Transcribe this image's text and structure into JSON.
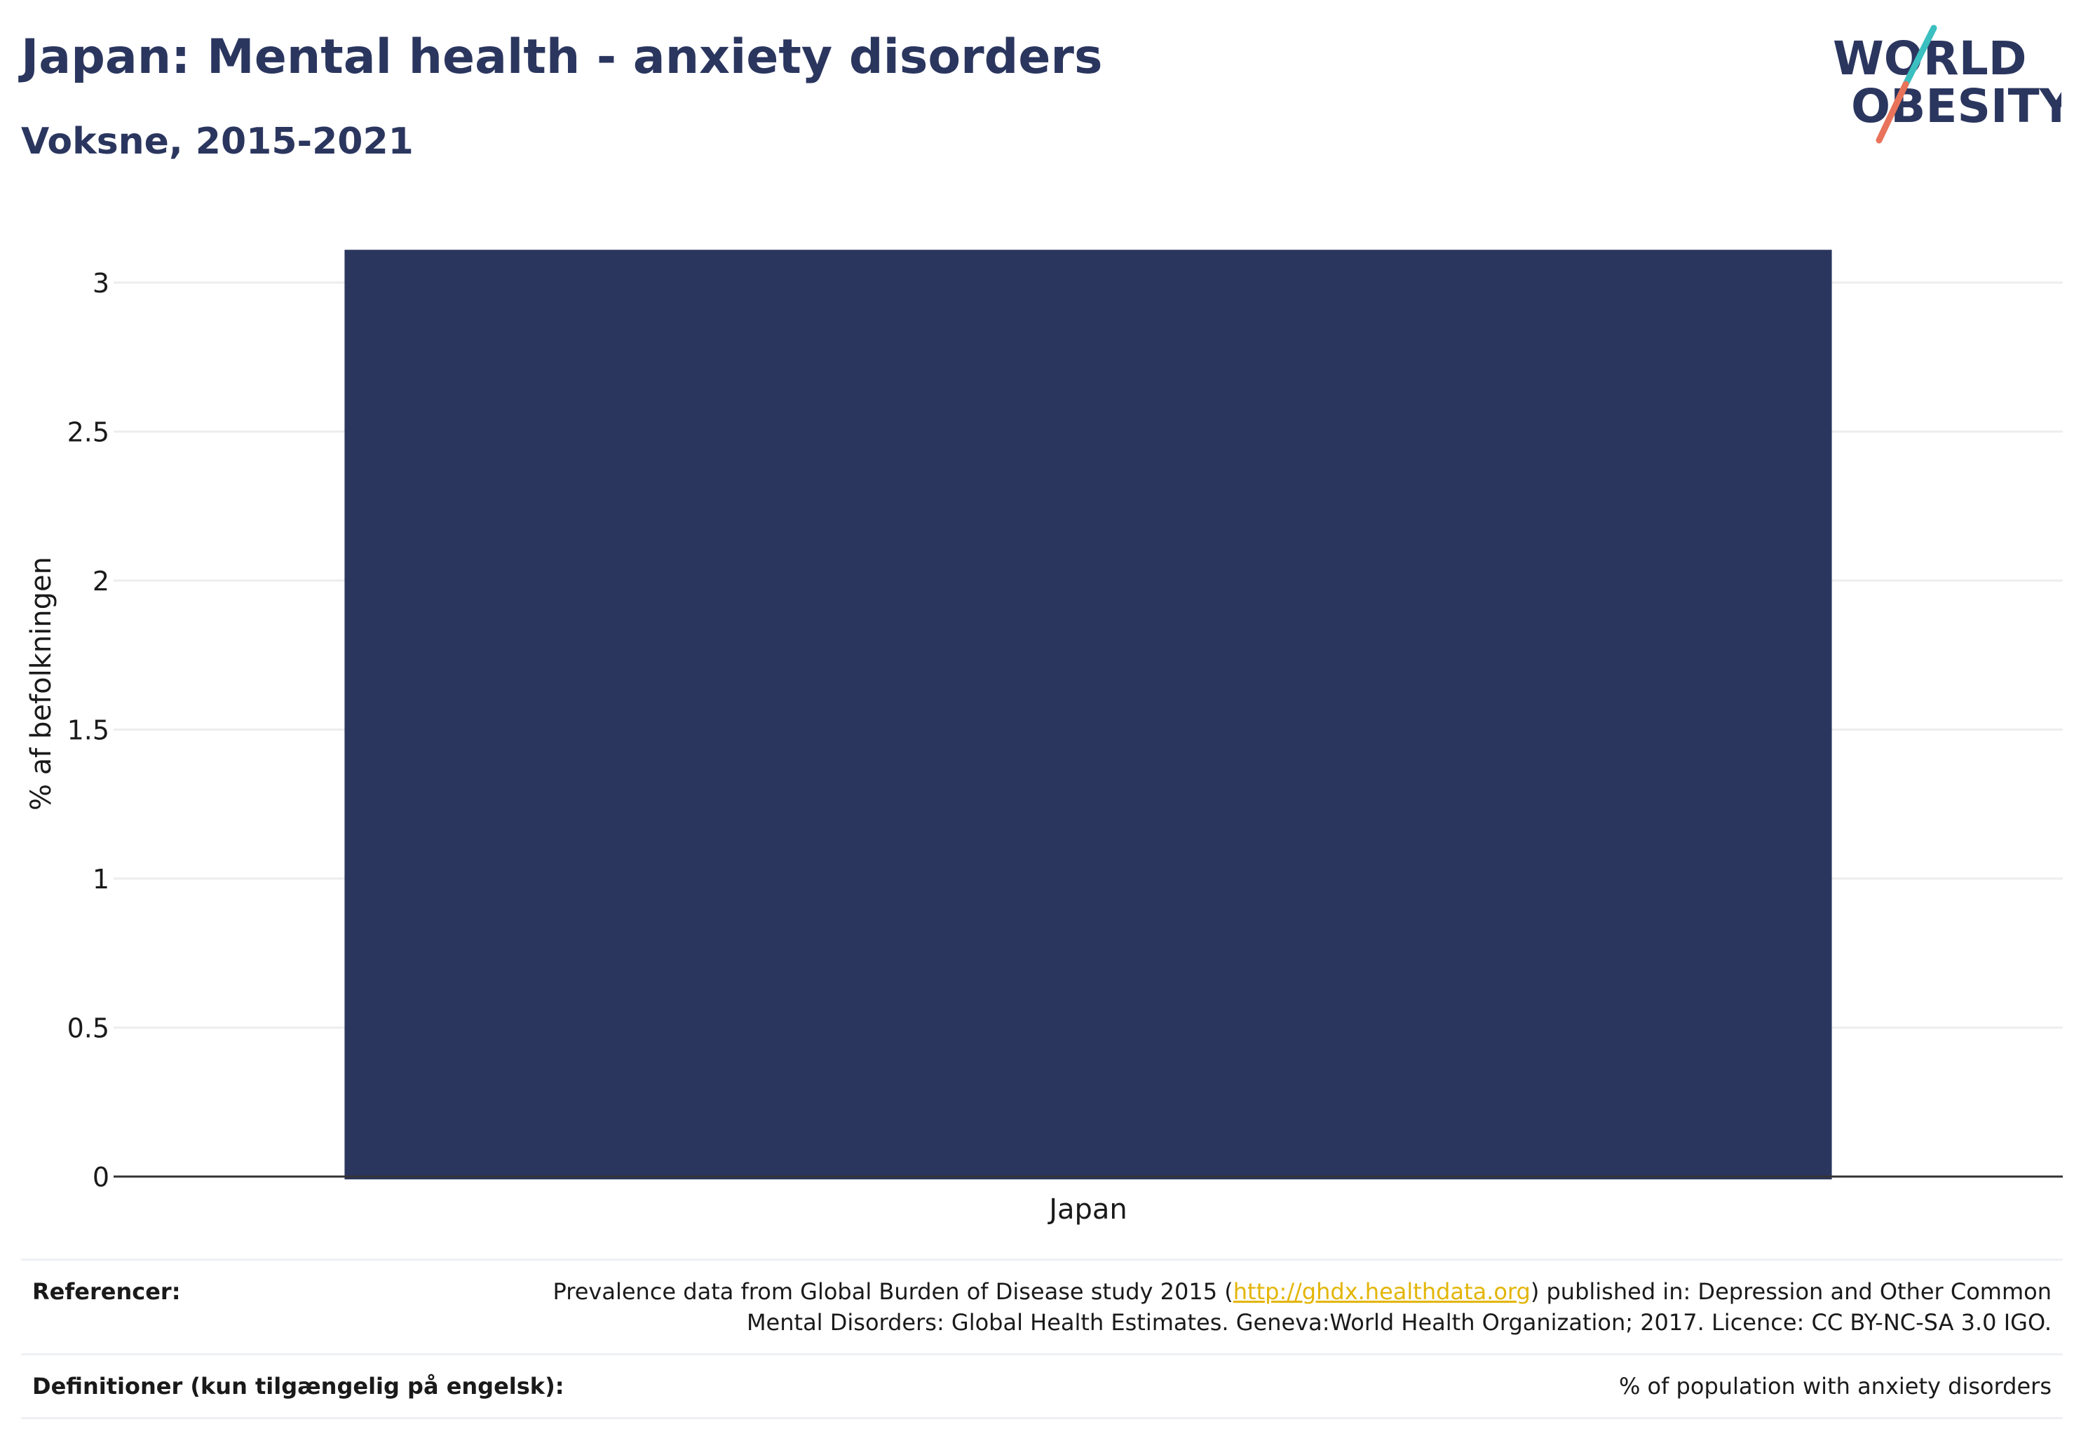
{
  "header": {
    "title": "Japan: Mental health - anxiety disorders",
    "subtitle": "Voksne, 2015-2021"
  },
  "logo": {
    "line1": "WORLD",
    "line2": "OBESITY",
    "colors": {
      "text": "#2b365f",
      "slash_top": "#3bbfbf",
      "slash_bottom": "#e8735a"
    }
  },
  "colors": {
    "bar": "#2b365f",
    "grid": "#eeeeee",
    "axis": "#333333",
    "link": "#e3b505"
  },
  "chart_data": {
    "type": "bar",
    "categories": [
      "Japan"
    ],
    "values": [
      3.11
    ],
    "title": "",
    "xlabel": "",
    "ylabel": "% af befolkningen",
    "ylim": [
      0,
      3.2
    ],
    "yticks": [
      0,
      0.5,
      1,
      1.5,
      2,
      2.5,
      3
    ],
    "ytick_labels": [
      "0",
      "0.5",
      "1",
      "1.5",
      "2",
      "2.5",
      "3"
    ],
    "grid": true,
    "legend": "none"
  },
  "footer": {
    "references_label": "Referencer:",
    "references_text_before": "Prevalence data from Global Burden of Disease study 2015 (",
    "references_link": "http://ghdx.healthdata.org",
    "references_text_after": ") published in: Depression and Other Common Mental Disorders: Global Health Estimates. Geneva:World Health Organization; 2017. Licence: CC BY-NC-SA 3.0 IGO.",
    "definitions_label": "Definitioner (kun tilgængelig på engelsk):",
    "definitions_text": "% of population with anxiety disorders"
  }
}
